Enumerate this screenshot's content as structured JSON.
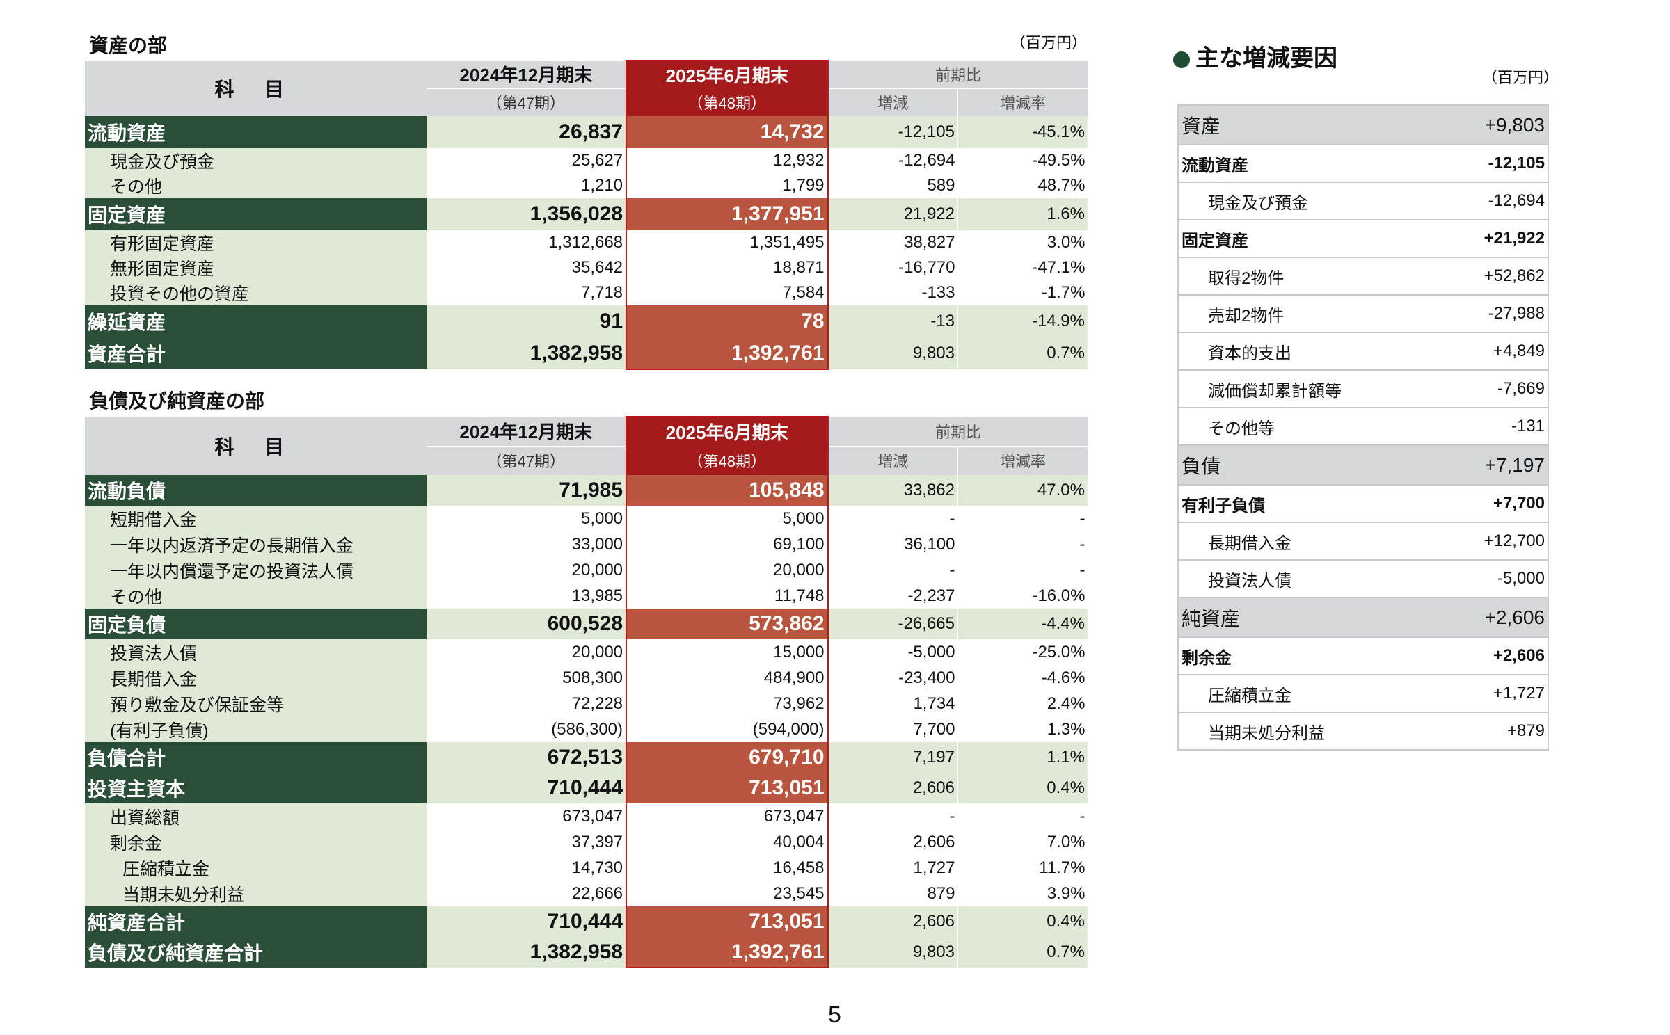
{
  "asset_section": {
    "title": "資産の部",
    "unit": "（百万円）",
    "header": {
      "label": "科 目",
      "prev_period": "2024年12月期末",
      "prev_sub": "（第47期）",
      "cur_period": "2025年6月期末",
      "cur_sub": "（第48期）",
      "comparison": "前期比",
      "change": "増減",
      "change_rate": "増減率"
    },
    "rows": [
      {
        "type": "main",
        "label": "流動資産",
        "prev": "26,837",
        "cur": "14,732",
        "change": "-12,105",
        "rate": "-45.1%"
      },
      {
        "type": "sub",
        "label": "現金及び預金",
        "prev": "25,627",
        "cur": "12,932",
        "change": "-12,694",
        "rate": "-49.5%"
      },
      {
        "type": "sub",
        "label": "その他",
        "prev": "1,210",
        "cur": "1,799",
        "change": "589",
        "rate": "48.7%"
      },
      {
        "type": "main",
        "label": "固定資産",
        "prev": "1,356,028",
        "cur": "1,377,951",
        "change": "21,922",
        "rate": "1.6%"
      },
      {
        "type": "sub",
        "label": "有形固定資産",
        "prev": "1,312,668",
        "cur": "1,351,495",
        "change": "38,827",
        "rate": "3.0%"
      },
      {
        "type": "sub",
        "label": "無形固定資産",
        "prev": "35,642",
        "cur": "18,871",
        "change": "-16,770",
        "rate": "-47.1%"
      },
      {
        "type": "sub",
        "label": "投資その他の資産",
        "prev": "7,718",
        "cur": "7,584",
        "change": "-133",
        "rate": "-1.7%"
      },
      {
        "type": "main",
        "label": "繰延資産",
        "prev": "91",
        "cur": "78",
        "change": "-13",
        "rate": "-14.9%"
      },
      {
        "type": "main",
        "label": "資産合計",
        "prev": "1,382,958",
        "cur": "1,392,761",
        "change": "9,803",
        "rate": "0.7%"
      }
    ]
  },
  "liability_section": {
    "title": "負債及び純資産の部",
    "header": {
      "label": "科 目",
      "prev_period": "2024年12月期末",
      "prev_sub": "（第47期）",
      "cur_period": "2025年6月期末",
      "cur_sub": "（第48期）",
      "comparison": "前期比",
      "change": "増減",
      "change_rate": "増減率"
    },
    "rows": [
      {
        "type": "main",
        "label": "流動負債",
        "prev": "71,985",
        "cur": "105,848",
        "change": "33,862",
        "rate": "47.0%"
      },
      {
        "type": "sub",
        "label": "短期借入金",
        "prev": "5,000",
        "cur": "5,000",
        "change": "-",
        "rate": "-"
      },
      {
        "type": "sub",
        "label": "一年以内返済予定の長期借入金",
        "prev": "33,000",
        "cur": "69,100",
        "change": "36,100",
        "rate": "-"
      },
      {
        "type": "sub",
        "label": "一年以内償還予定の投資法人債",
        "prev": "20,000",
        "cur": "20,000",
        "change": "-",
        "rate": "-"
      },
      {
        "type": "sub",
        "label": "その他",
        "prev": "13,985",
        "cur": "11,748",
        "change": "-2,237",
        "rate": "-16.0%"
      },
      {
        "type": "main",
        "label": "固定負債",
        "prev": "600,528",
        "cur": "573,862",
        "change": "-26,665",
        "rate": "-4.4%"
      },
      {
        "type": "sub",
        "label": "投資法人債",
        "prev": "20,000",
        "cur": "15,000",
        "change": "-5,000",
        "rate": "-25.0%"
      },
      {
        "type": "sub",
        "label": "長期借入金",
        "prev": "508,300",
        "cur": "484,900",
        "change": "-23,400",
        "rate": "-4.6%"
      },
      {
        "type": "sub",
        "label": "預り敷金及び保証金等",
        "prev": "72,228",
        "cur": "73,962",
        "change": "1,734",
        "rate": "2.4%"
      },
      {
        "type": "sub",
        "label": "(有利子負債)",
        "prev": "(586,300)",
        "cur": "(594,000)",
        "change": "7,700",
        "rate": "1.3%"
      },
      {
        "type": "main",
        "label": "負債合計",
        "prev": "672,513",
        "cur": "679,710",
        "change": "7,197",
        "rate": "1.1%"
      },
      {
        "type": "main",
        "label": "投資主資本",
        "prev": "710,444",
        "cur": "713,051",
        "change": "2,606",
        "rate": "0.4%"
      },
      {
        "type": "sub",
        "label": "出資総額",
        "prev": "673,047",
        "cur": "673,047",
        "change": "-",
        "rate": "-"
      },
      {
        "type": "sub",
        "label": "剰余金",
        "prev": "37,397",
        "cur": "40,004",
        "change": "2,606",
        "rate": "7.0%"
      },
      {
        "type": "sub2",
        "label": "圧縮積立金",
        "prev": "14,730",
        "cur": "16,458",
        "change": "1,727",
        "rate": "11.7%"
      },
      {
        "type": "sub2",
        "label": "当期未処分利益",
        "prev": "22,666",
        "cur": "23,545",
        "change": "879",
        "rate": "3.9%"
      },
      {
        "type": "main",
        "label": "純資産合計",
        "prev": "710,444",
        "cur": "713,051",
        "change": "2,606",
        "rate": "0.4%"
      },
      {
        "type": "main",
        "label": "負債及び純資産合計",
        "prev": "1,382,958",
        "cur": "1,392,761",
        "change": "9,803",
        "rate": "0.7%"
      }
    ]
  },
  "factors": {
    "title": "主な増減要因",
    "unit": "（百万円）",
    "rows": [
      {
        "type": "main",
        "label": "資産",
        "value": "+9,803"
      },
      {
        "type": "bold",
        "label": "流動資産",
        "value": "-12,105"
      },
      {
        "type": "sub",
        "label": "現金及び預金",
        "value": "-12,694"
      },
      {
        "type": "bold",
        "label": "固定資産",
        "value": "+21,922"
      },
      {
        "type": "sub",
        "label": "取得2物件",
        "value": "+52,862"
      },
      {
        "type": "sub",
        "label": "売却2物件",
        "value": "-27,988"
      },
      {
        "type": "sub",
        "label": "資本的支出",
        "value": "+4,849"
      },
      {
        "type": "sub",
        "label": "減価償却累計額等",
        "value": "-7,669"
      },
      {
        "type": "sub",
        "label": "その他等",
        "value": "-131"
      },
      {
        "type": "main",
        "label": "負債",
        "value": "+7,197"
      },
      {
        "type": "bold",
        "label": "有利子負債",
        "value": "+7,700"
      },
      {
        "type": "sub",
        "label": "長期借入金",
        "value": "+12,700"
      },
      {
        "type": "sub",
        "label": "投資法人債",
        "value": "-5,000"
      },
      {
        "type": "main",
        "label": "純資産",
        "value": "+2,606"
      },
      {
        "type": "bold",
        "label": "剰余金",
        "value": "+2,606"
      },
      {
        "type": "sub",
        "label": "圧縮積立金",
        "value": "+1,727"
      },
      {
        "type": "sub",
        "label": "当期未処分利益",
        "value": "+879"
      }
    ]
  },
  "page_number": "5",
  "colors": {
    "dark_green": "#2a4e38",
    "light_green": "#dfe9d5",
    "header_gray": "#d6d7db",
    "highlight_red": "#a51b1b",
    "value_red": "#b9553e"
  }
}
